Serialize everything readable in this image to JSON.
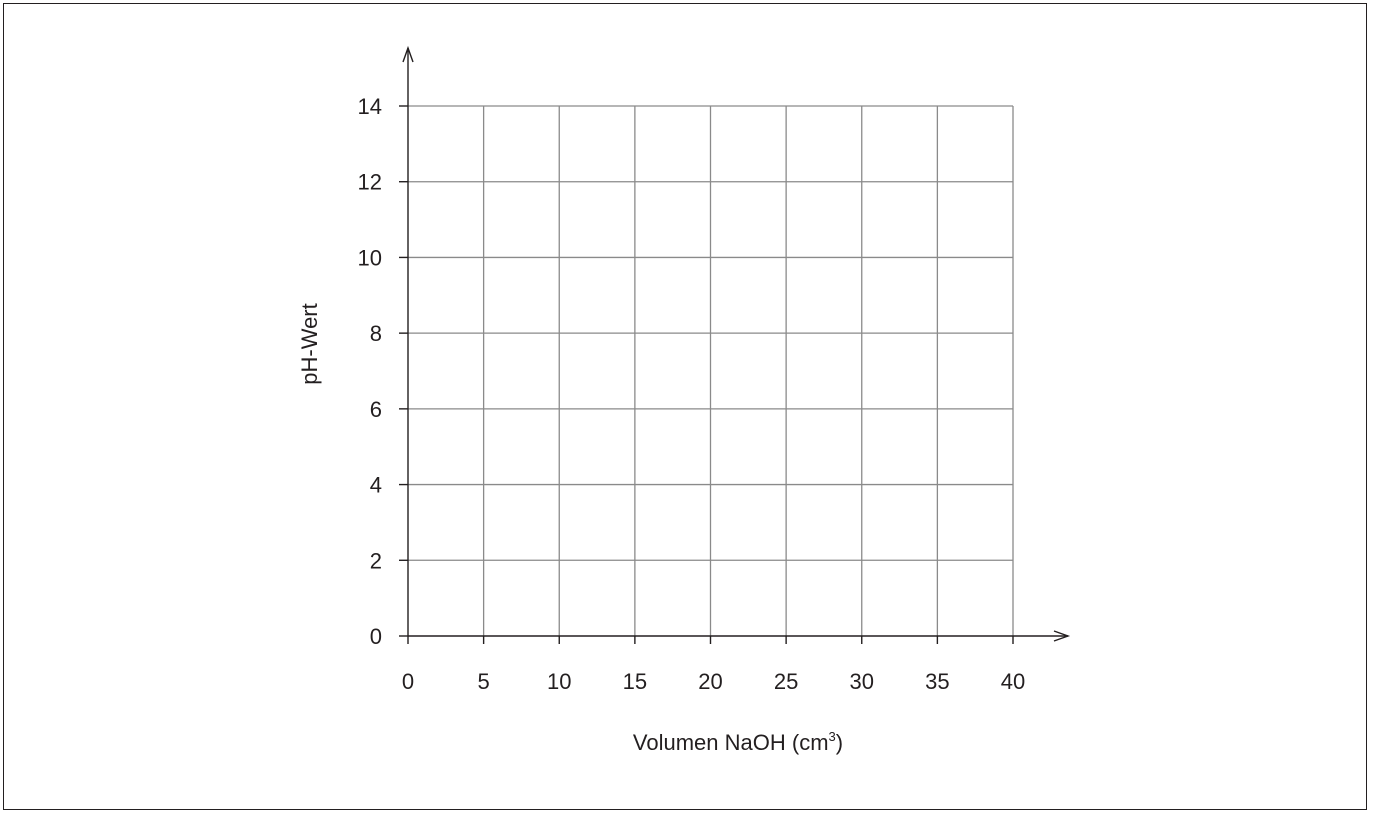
{
  "chart_data": {
    "type": "line",
    "title": "",
    "xlabel": "Volumen NaOH (cm",
    "xlabel_unit_exp": "3",
    "xlabel_close": ")",
    "ylabel": "pH-Wert",
    "xlim": [
      0,
      40
    ],
    "ylim": [
      0,
      14
    ],
    "x_ticks": [
      0,
      5,
      10,
      15,
      20,
      25,
      30,
      35,
      40
    ],
    "y_ticks": [
      0,
      2,
      4,
      6,
      8,
      10,
      12,
      14
    ],
    "grid": true,
    "series": [],
    "colors": {
      "axis": "#231f20",
      "grid": "#8a8a8a"
    }
  }
}
